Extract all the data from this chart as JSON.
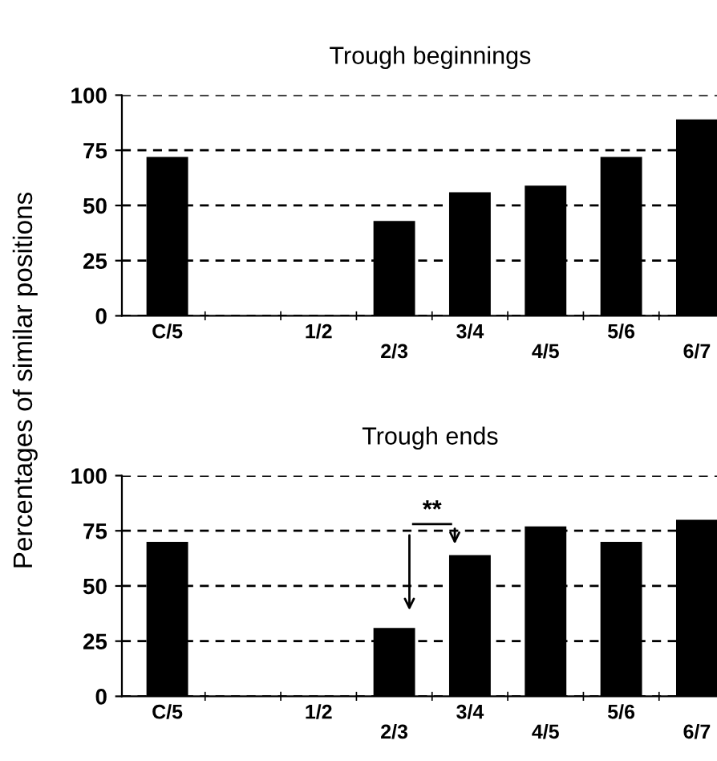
{
  "chart_data": [
    {
      "type": "bar",
      "title": "Trough beginnings",
      "ylabel": "Percentages of similar positions",
      "categories": [
        "C/5",
        null,
        "1/2",
        "2/3",
        "3/4",
        "4/5",
        "5/6",
        "6/7"
      ],
      "values": [
        72,
        null,
        null,
        43,
        56,
        59,
        72,
        89
      ],
      "color": "#000000",
      "ylim": [
        0,
        100
      ],
      "yticks": [
        0,
        25,
        50,
        75,
        100
      ],
      "grid": "y"
    },
    {
      "type": "bar",
      "title": "Trough ends",
      "categories": [
        "C/5",
        null,
        "1/2",
        "2/3",
        "3/4",
        "4/5",
        "5/6",
        "6/7"
      ],
      "values": [
        70,
        null,
        null,
        31,
        64,
        77,
        70,
        80
      ],
      "color": "#000000",
      "ylim": [
        0,
        100
      ],
      "yticks": [
        0,
        25,
        50,
        75,
        100
      ],
      "grid": "y",
      "annotations": [
        "**"
      ]
    }
  ]
}
